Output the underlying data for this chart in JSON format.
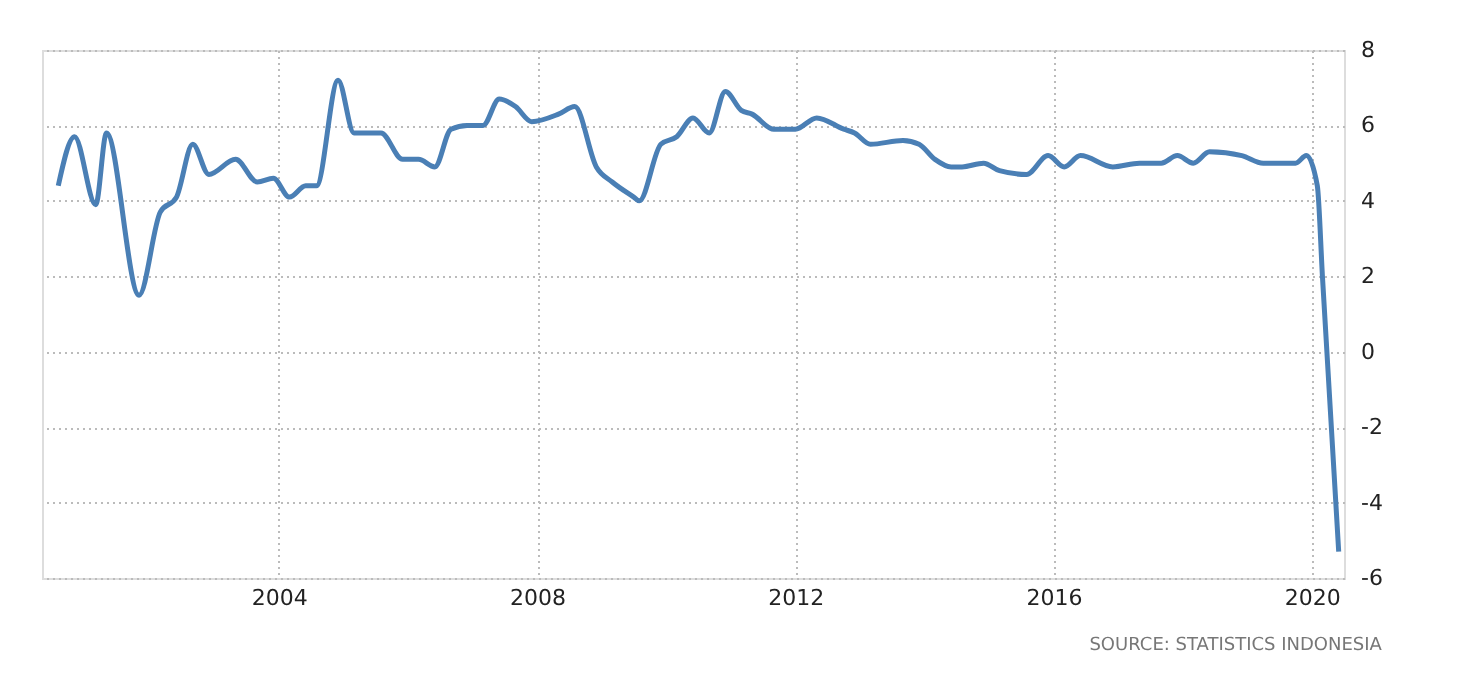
{
  "chart_data": {
    "type": "line",
    "x": [
      "2000-08",
      "2000-11",
      "2001-03",
      "2001-05",
      "2001-11",
      "2002-03",
      "2002-06",
      "2002-09",
      "2002-12",
      "2003-05",
      "2003-09",
      "2003-12",
      "2004-03",
      "2004-06",
      "2004-08",
      "2004-12",
      "2005-03",
      "2005-08",
      "2005-12",
      "2006-03",
      "2006-06",
      "2006-09",
      "2006-12",
      "2007-03",
      "2007-06",
      "2007-09",
      "2007-12",
      "2008-05",
      "2008-08",
      "2008-12",
      "2009-03",
      "2009-07",
      "2009-08",
      "2009-12",
      "2010-03",
      "2010-06",
      "2010-09",
      "2010-12",
      "2011-03",
      "2011-05",
      "2011-09",
      "2012-01",
      "2012-05",
      "2012-10",
      "2012-12",
      "2013-03",
      "2013-09",
      "2013-12",
      "2014-03",
      "2014-06",
      "2014-08",
      "2014-12",
      "2015-03",
      "2015-08",
      "2015-12",
      "2016-03",
      "2016-06",
      "2016-12",
      "2017-05",
      "2017-09",
      "2017-12",
      "2018-03",
      "2018-06",
      "2018-12",
      "2019-04",
      "2019-10",
      "2019-12",
      "2020-02",
      "2020-03",
      "2020-06"
    ],
    "series": [
      {
        "color": "#4a7fb5",
        "values": [
          4.4,
          5.7,
          3.9,
          5.8,
          1.5,
          3.7,
          4.1,
          5.5,
          4.7,
          5.1,
          4.5,
          4.6,
          4.1,
          4.4,
          4.4,
          7.2,
          5.8,
          5.8,
          5.1,
          5.1,
          4.9,
          5.9,
          6.0,
          6.0,
          6.7,
          6.5,
          6.1,
          6.3,
          6.5,
          4.9,
          4.5,
          4.1,
          4.0,
          5.5,
          5.7,
          6.2,
          5.8,
          6.9,
          6.4,
          6.3,
          5.9,
          5.9,
          6.2,
          5.9,
          5.8,
          5.5,
          5.6,
          5.5,
          5.1,
          4.9,
          4.9,
          5.0,
          4.8,
          4.7,
          5.2,
          4.9,
          5.2,
          4.9,
          5.0,
          5.0,
          5.2,
          5.0,
          5.3,
          5.2,
          5.0,
          5.0,
          5.2,
          4.4,
          2.0,
          -5.3
        ]
      }
    ],
    "xlim": [
      "2000-05",
      "2020-07"
    ],
    "xticks": [
      "2004",
      "2008",
      "2012",
      "2016",
      "2020"
    ],
    "ylim": [
      -6,
      8
    ],
    "yticks": [
      -6,
      -4,
      -2,
      0,
      2,
      4,
      6,
      8
    ],
    "grid": true,
    "marker": "none",
    "line_style": "solid",
    "annotations": [
      "SOURCE: STATISTICS INDONESIA"
    ]
  }
}
